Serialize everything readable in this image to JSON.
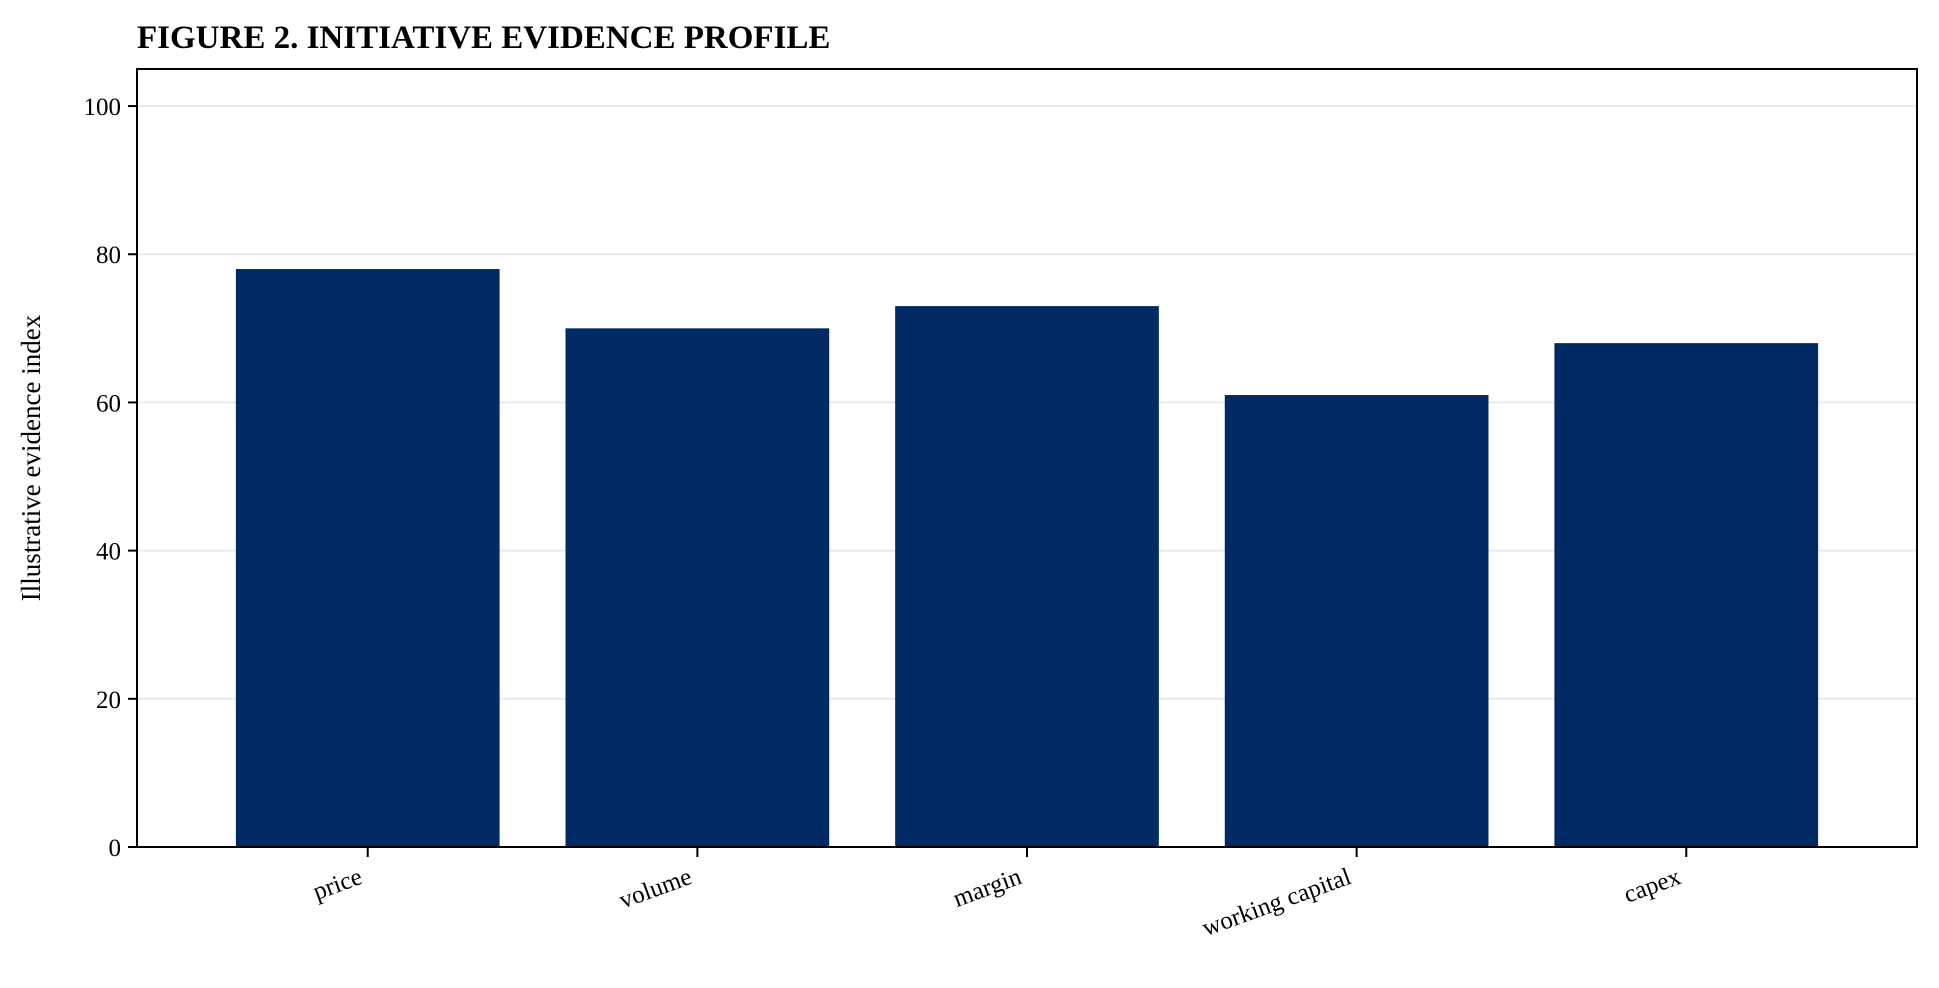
{
  "chart_data": {
    "type": "bar",
    "title": "FIGURE 2. INITIATIVE EVIDENCE PROFILE",
    "xlabel": "",
    "ylabel": "Illustrative evidence index",
    "categories": [
      "price",
      "volume",
      "margin",
      "working capital",
      "capex"
    ],
    "values": [
      78,
      70,
      73,
      61,
      68
    ],
    "ylim": [
      0,
      105
    ],
    "yticks": [
      0,
      20,
      40,
      60,
      80,
      100
    ],
    "grid": "horizontal",
    "legend": "none",
    "bar_color": "#002a63",
    "grid_color": "#e6e9ee"
  }
}
